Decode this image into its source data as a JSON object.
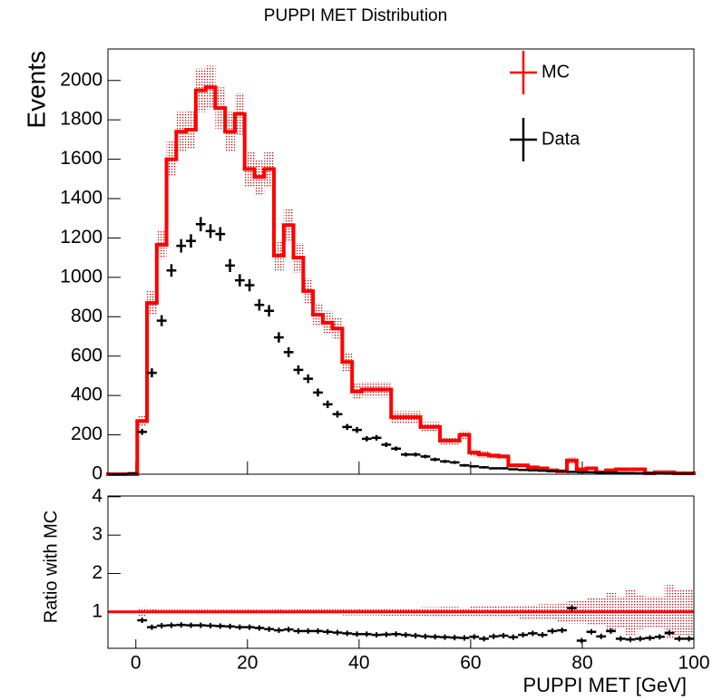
{
  "chart_data": [
    {
      "type": "histogram",
      "title": "PUPPI MET Distribution",
      "ylabel": "Events",
      "bins": [
        -5,
        -3.25,
        -1.5,
        0.25,
        2,
        3.75,
        5.5,
        7.25,
        9,
        10.75,
        12.5,
        14.25,
        16,
        17.75,
        19.5,
        21.25,
        23,
        24.75,
        26.5,
        28.25,
        30,
        31.75,
        33.5,
        35.25,
        37,
        38.75,
        40.5,
        42.25,
        44,
        45.75,
        47.5,
        49.25,
        51,
        52.75,
        54.5,
        56.25,
        58,
        59.75,
        61.5,
        63.25,
        65,
        66.75,
        68.5,
        70.25,
        72,
        73.75,
        75.5,
        77.25,
        79,
        80.75,
        82.5,
        84.25,
        86,
        87.75,
        89.5,
        91.25,
        93,
        94.75,
        96.5,
        98.25,
        100
      ],
      "xlim": [
        -5,
        100
      ],
      "ylim": [
        0,
        2160
      ],
      "yticks": [
        0,
        200,
        400,
        600,
        800,
        1000,
        1200,
        1400,
        1600,
        1800,
        2000
      ],
      "legend": "top-right",
      "series": [
        {
          "name": "MC",
          "color": "#ff0000",
          "values": [
            0,
            0,
            0,
            270,
            870,
            1165,
            1600,
            1740,
            1750,
            1950,
            1965,
            1860,
            1740,
            1830,
            1550,
            1510,
            1550,
            1110,
            1265,
            1100,
            930,
            810,
            770,
            740,
            570,
            420,
            430,
            430,
            430,
            290,
            290,
            290,
            240,
            240,
            170,
            170,
            200,
            110,
            100,
            95,
            90,
            45,
            45,
            35,
            30,
            20,
            15,
            70,
            25,
            30,
            10,
            20,
            25,
            25,
            25,
            5,
            10,
            10,
            5,
            5
          ],
          "errors": [
            0,
            0,
            0,
            30,
            60,
            70,
            90,
            100,
            100,
            110,
            110,
            105,
            100,
            105,
            90,
            90,
            90,
            75,
            80,
            75,
            65,
            60,
            60,
            55,
            50,
            40,
            40,
            40,
            40,
            30,
            30,
            30,
            25,
            25,
            20,
            20,
            22,
            15,
            15,
            14,
            13,
            10,
            10,
            8,
            8,
            7,
            6,
            15,
            8,
            8,
            5,
            6,
            8,
            8,
            8,
            3,
            5,
            5,
            3,
            3
          ]
        },
        {
          "name": "Data",
          "color": "#000000",
          "values": [
            0,
            0,
            5,
            215,
            515,
            780,
            1035,
            1160,
            1185,
            1270,
            1235,
            1220,
            1060,
            985,
            960,
            860,
            830,
            695,
            620,
            530,
            485,
            415,
            355,
            305,
            240,
            225,
            180,
            185,
            150,
            130,
            100,
            100,
            90,
            75,
            65,
            60,
            45,
            40,
            35,
            30,
            30,
            25,
            22,
            20,
            18,
            15,
            15,
            12,
            10,
            10,
            8,
            8,
            6,
            6,
            5,
            5,
            4,
            3,
            3,
            3
          ],
          "errors": [
            0,
            0,
            2,
            15,
            23,
            28,
            32,
            34,
            34,
            36,
            35,
            35,
            33,
            31,
            31,
            29,
            29,
            26,
            25,
            23,
            22,
            20,
            19,
            17,
            15,
            15,
            13,
            14,
            12,
            11,
            10,
            10,
            9,
            9,
            8,
            8,
            7,
            6,
            6,
            5,
            5,
            5,
            5,
            4,
            4,
            4,
            4,
            3,
            3,
            3,
            3,
            3,
            2,
            2,
            2,
            2,
            2,
            2,
            2,
            2
          ]
        }
      ]
    },
    {
      "type": "ratio",
      "ylabel": "Ratio with MC",
      "xlabel": "PUPPI MET [GeV]",
      "xlim": [
        -5,
        100
      ],
      "ylim": [
        0.05,
        4.02
      ],
      "xticks": [
        0,
        20,
        40,
        60,
        80,
        100
      ],
      "yticks": [
        1,
        2,
        3,
        4
      ],
      "reference": 1,
      "color": "#ff0000",
      "band_errors": [
        null,
        null,
        null,
        0.11,
        0.07,
        0.06,
        0.06,
        0.06,
        0.06,
        0.06,
        0.06,
        0.06,
        0.06,
        0.06,
        0.06,
        0.06,
        0.06,
        0.07,
        0.06,
        0.07,
        0.07,
        0.07,
        0.07,
        0.07,
        0.09,
        0.09,
        0.09,
        0.09,
        0.1,
        0.1,
        0.1,
        0.1,
        0.12,
        0.12,
        0.13,
        0.13,
        0.11,
        0.14,
        0.15,
        0.15,
        0.15,
        0.15,
        0.18,
        0.18,
        0.2,
        0.2,
        0.25,
        0.3,
        0.3,
        0.35,
        0.35,
        0.5,
        0.4,
        0.6,
        0.45,
        0.4,
        0.4,
        0.7,
        0.6,
        0.6
      ],
      "values": [
        null,
        null,
        null,
        0.78,
        0.6,
        0.64,
        0.65,
        0.66,
        0.65,
        0.65,
        0.64,
        0.63,
        0.62,
        0.6,
        0.6,
        0.58,
        0.55,
        0.52,
        0.54,
        0.5,
        0.5,
        0.5,
        0.48,
        0.46,
        0.44,
        0.42,
        0.42,
        0.4,
        0.41,
        0.42,
        0.4,
        0.38,
        0.36,
        0.35,
        0.34,
        0.33,
        0.32,
        0.35,
        0.3,
        0.36,
        0.38,
        0.34,
        0.4,
        0.44,
        0.4,
        0.5,
        0.52,
        1.1,
        0.25,
        0.48,
        0.36,
        0.5,
        0.3,
        0.28,
        0.3,
        0.32,
        0.35,
        0.45,
        0.3,
        0.3
      ]
    }
  ]
}
